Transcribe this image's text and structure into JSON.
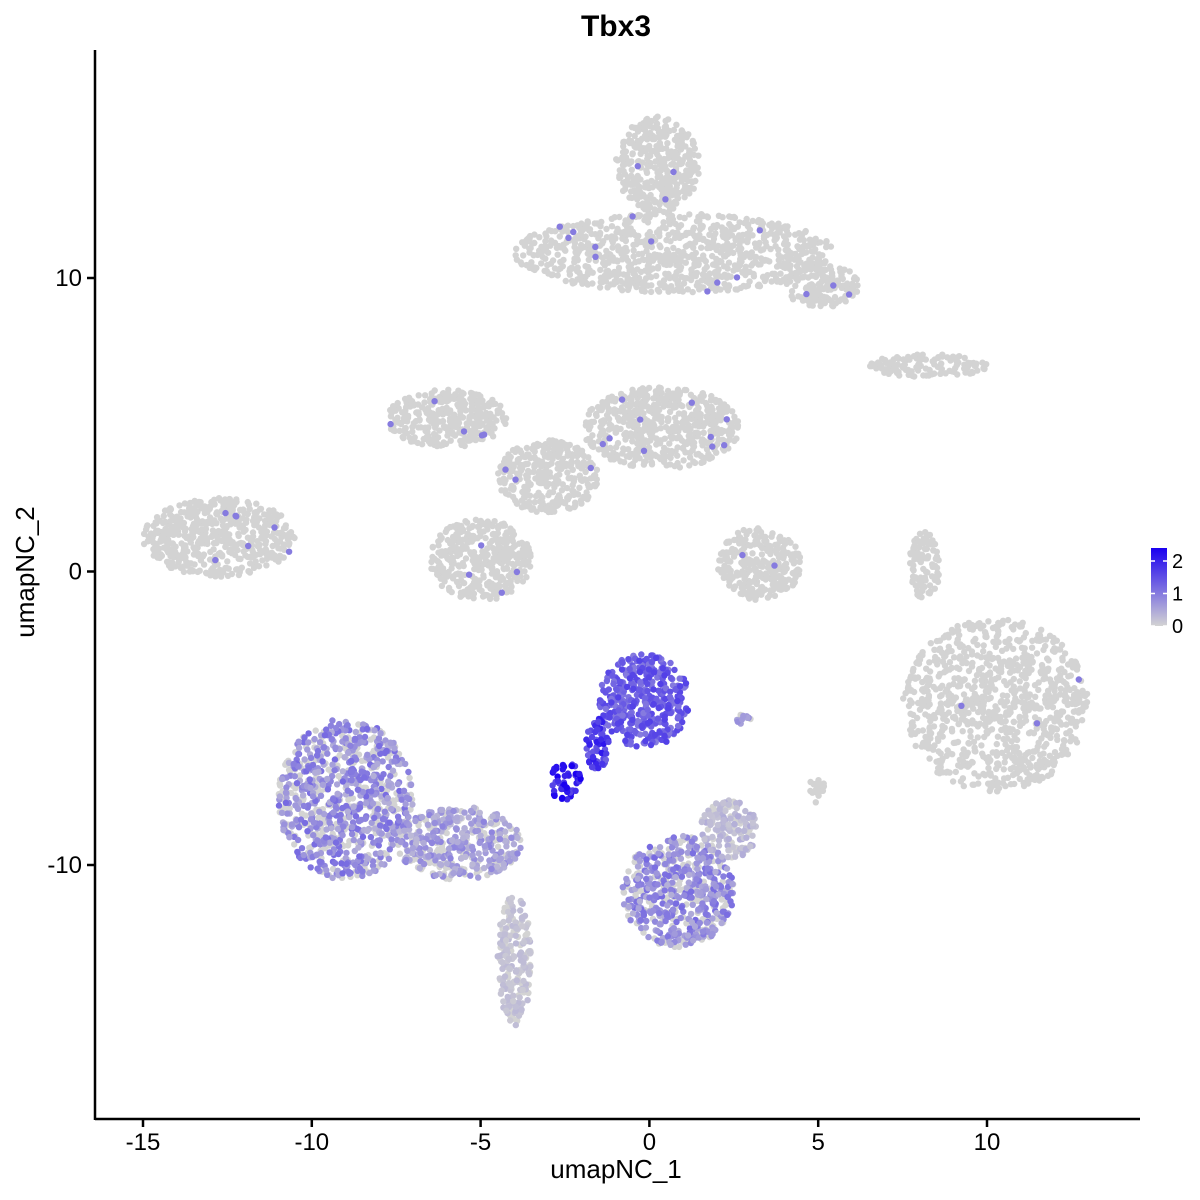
{
  "chart_data": {
    "type": "scatter",
    "title": "Tbx3",
    "xlabel": "umapNC_1",
    "ylabel": "umapNC_2",
    "xlim": [
      -16.5,
      14.5
    ],
    "ylim": [
      -18.5,
      17.8
    ],
    "x_ticks": [
      -15,
      -10,
      -5,
      0,
      5,
      10
    ],
    "x_tick_labels": [
      "-15",
      "-10",
      "-5",
      "0",
      "5",
      "10"
    ],
    "y_ticks": [
      -10,
      0,
      10
    ],
    "y_tick_labels": [
      "-10",
      "0",
      "10"
    ],
    "grid": false,
    "legend": {
      "placement": "right",
      "type": "colorbar",
      "min": 0,
      "max": 2.4,
      "ticks": [
        0,
        1,
        2
      ],
      "tick_labels": [
        "0",
        "1",
        "2"
      ],
      "low_color": "#d3d3d3",
      "high_color": "#1a00f0"
    },
    "colors": {
      "low": "#d3d3d3",
      "high": "#1a00f0"
    },
    "clusters": [
      {
        "name": "top-right-body",
        "x": [
          -1.0,
          1.5
        ],
        "y": [
          12.2,
          15.5
        ],
        "expression": 0,
        "color": "low"
      },
      {
        "name": "top-right-arm",
        "x": [
          -4.0,
          5.5
        ],
        "y": [
          9.5,
          12.2
        ],
        "expression": 0,
        "color": "low"
      },
      {
        "name": "top-right-tail",
        "x": [
          4.0,
          6.2
        ],
        "y": [
          9.0,
          10.5
        ],
        "expression": 0,
        "color": "low"
      },
      {
        "name": "center-upper-left-lobe",
        "x": [
          -7.8,
          -4.2
        ],
        "y": [
          4.2,
          6.2
        ],
        "expression": 0,
        "color": "low"
      },
      {
        "name": "center-upper-right-lobe",
        "x": [
          -2.0,
          2.7
        ],
        "y": [
          3.5,
          6.3
        ],
        "expression": 0,
        "color": "low"
      },
      {
        "name": "center-hub",
        "x": [
          -4.5,
          -1.5
        ],
        "y": [
          2.0,
          4.5
        ],
        "expression": 0,
        "color": "low"
      },
      {
        "name": "center-lower-lobe",
        "x": [
          -6.5,
          -3.5
        ],
        "y": [
          -1.0,
          1.8
        ],
        "expression": 0,
        "color": "low"
      },
      {
        "name": "left-isolated",
        "x": [
          -15.0,
          -10.5
        ],
        "y": [
          -0.2,
          2.5
        ],
        "expression": 0,
        "color": "low"
      },
      {
        "name": "small-right-center",
        "x": [
          2.0,
          4.5
        ],
        "y": [
          -1.0,
          1.5
        ],
        "expression": 0,
        "color": "low"
      },
      {
        "name": "right-strip",
        "x": [
          6.5,
          10.0
        ],
        "y": [
          6.6,
          7.4
        ],
        "expression": 0,
        "color": "low"
      },
      {
        "name": "right-big-blob",
        "x": [
          7.5,
          13.0
        ],
        "y": [
          -7.5,
          -1.6
        ],
        "expression": 0,
        "color": "low"
      },
      {
        "name": "right-thin-arm",
        "x": [
          7.7,
          8.6
        ],
        "y": [
          -1.0,
          1.4
        ],
        "expression": 0,
        "color": "low"
      },
      {
        "name": "bottom-left-blob",
        "x": [
          -11.0,
          -7.0
        ],
        "y": [
          -10.5,
          -5.0
        ],
        "expression": 0.8,
        "color": "mixed"
      },
      {
        "name": "bottom-left-tail",
        "x": [
          -7.5,
          -3.8
        ],
        "y": [
          -10.5,
          -8.0
        ],
        "expression": 0.6,
        "color": "mixed"
      },
      {
        "name": "bottom-left-stem",
        "x": [
          -4.5,
          -3.5
        ],
        "y": [
          -15.5,
          -11.0
        ],
        "expression": 0.2,
        "color": "mixed"
      },
      {
        "name": "center-upper-expr",
        "x": [
          -1.5,
          1.2
        ],
        "y": [
          -6.0,
          -2.8
        ],
        "expression": 1.4,
        "color": "high"
      },
      {
        "name": "center-bridge",
        "x": [
          -1.9,
          -1.2
        ],
        "y": [
          -6.8,
          -5.0
        ],
        "expression": 1.8,
        "color": "high"
      },
      {
        "name": "center-dense-knot",
        "x": [
          -3.0,
          -2.0
        ],
        "y": [
          -7.8,
          -6.5
        ],
        "expression": 2.2,
        "color": "high"
      },
      {
        "name": "lower-branch",
        "x": [
          -0.8,
          2.5
        ],
        "y": [
          -12.8,
          -9.0
        ],
        "expression": 0.8,
        "color": "mixed"
      },
      {
        "name": "small-lower-right",
        "x": [
          1.5,
          3.2
        ],
        "y": [
          -9.8,
          -7.8
        ],
        "expression": 0.3,
        "color": "mixed"
      },
      {
        "name": "small-right-mid",
        "x": [
          2.5,
          3.0
        ],
        "y": [
          -5.2,
          -4.8
        ],
        "expression": 0.6,
        "color": "mixed"
      },
      {
        "name": "small-far-right",
        "x": [
          4.7,
          5.2
        ],
        "y": [
          -7.9,
          -7.0
        ],
        "expression": 0,
        "color": "low"
      }
    ]
  }
}
